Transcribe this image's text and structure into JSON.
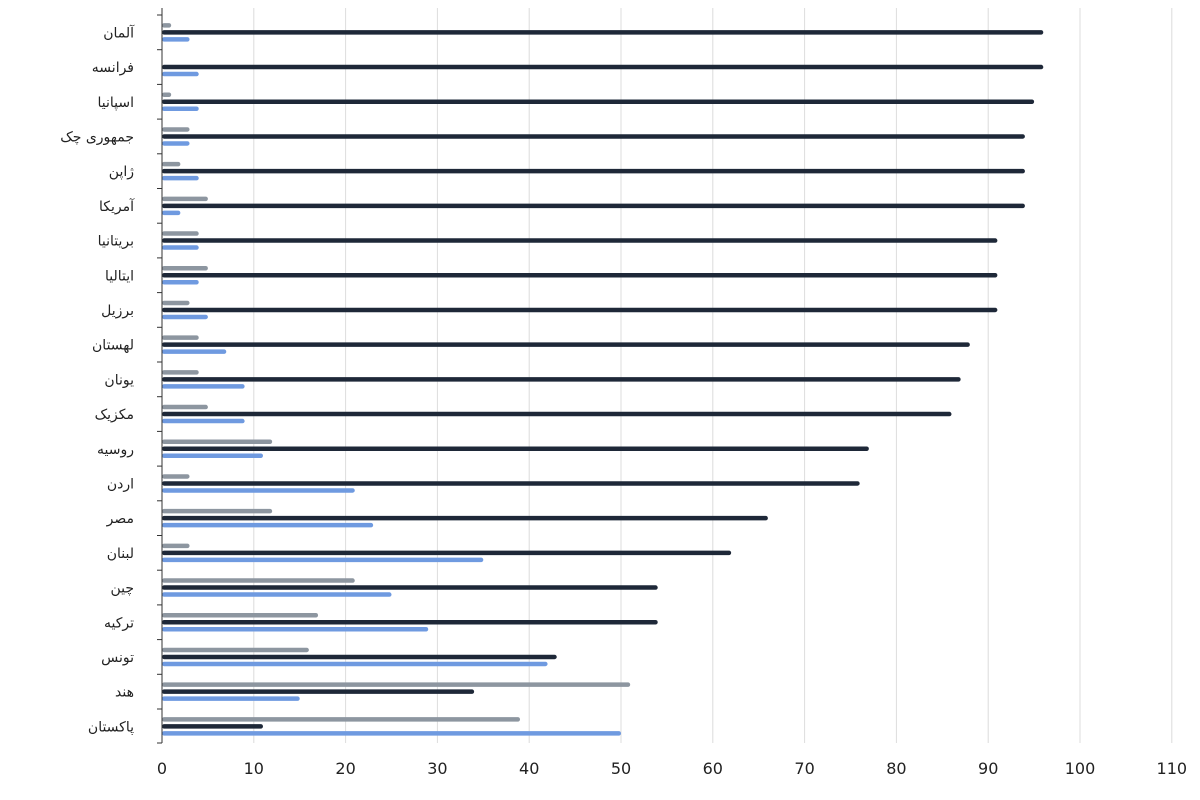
{
  "chart_data": {
    "type": "bar",
    "orientation": "horizontal",
    "categories": [
      "آلمان",
      "فرانسه",
      "اسپانیا",
      "جمهوری چک",
      "ژاپن",
      "آمریکا",
      "بریتانیا",
      "ایتالیا",
      "برزیل",
      "لهستان",
      "یونان",
      "مکزیک",
      "روسیه",
      "اردن",
      "مصر",
      "لبنان",
      "چین",
      "ترکیه",
      "تونس",
      "هند",
      "پاکستان"
    ],
    "series": [
      {
        "values": [
          1,
          0,
          1,
          3,
          2,
          5,
          4,
          5,
          3,
          4,
          4,
          5,
          12,
          3,
          12,
          3,
          21,
          17,
          16,
          51,
          39
        ]
      },
      {
        "values": [
          96,
          96,
          95,
          94,
          94,
          94,
          91,
          91,
          91,
          88,
          87,
          86,
          77,
          76,
          66,
          62,
          54,
          54,
          43,
          34,
          11
        ]
      },
      {
        "values": [
          3,
          4,
          4,
          3,
          4,
          2,
          4,
          4,
          5,
          7,
          9,
          9,
          11,
          21,
          23,
          35,
          25,
          29,
          42,
          15,
          50
        ]
      }
    ],
    "xlim": [
      0,
      110
    ],
    "xticks": [
      0,
      10,
      20,
      30,
      40,
      50,
      60,
      70,
      80,
      90,
      100,
      110
    ],
    "grid": true,
    "colors": [
      "#8d96a0",
      "#1e2838",
      "#6f9ae0"
    ],
    "legend": "none"
  }
}
